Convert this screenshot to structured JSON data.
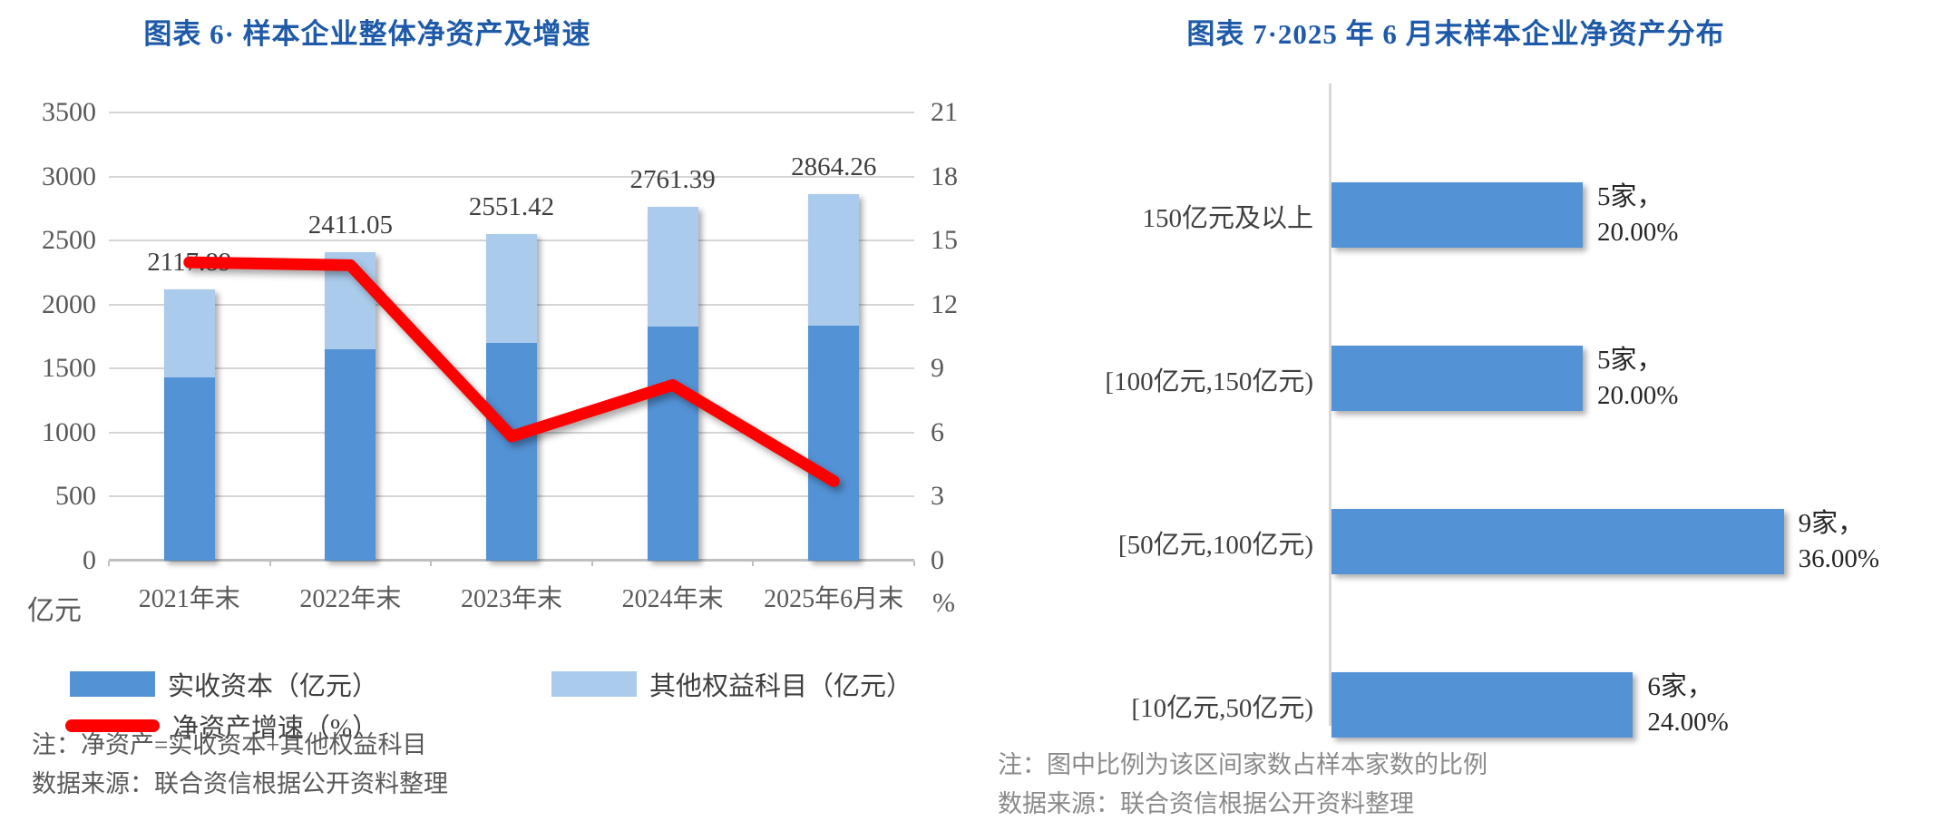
{
  "accent_colors": {
    "title_blue": "#1E5AA8",
    "bar_dark_blue": "#5392D5",
    "bar_light_blue": "#ABCBEC",
    "line_red": "#FF0000",
    "axis_text_gray": "#595959",
    "gridline_gray": "#D6D6D6"
  },
  "chart_data": [
    {
      "type": "bar",
      "subtype": "stacked-bars-with-line",
      "title": "图表 6· 样本企业整体净资产及增速",
      "categories": [
        "2021年末",
        "2022年末",
        "2023年末",
        "2024年末",
        "2025年6月末"
      ],
      "series": [
        {
          "name": "实收资本（亿元）",
          "kind": "bar",
          "color": "#5392D5",
          "values": [
            1430,
            1650,
            1700,
            1825,
            1832
          ]
        },
        {
          "name": "其他权益科目（亿元）",
          "kind": "bar",
          "color": "#ABCBEC",
          "values": [
            688,
            761,
            851,
            936,
            1032
          ]
        },
        {
          "name": "净资产增速（%）",
          "kind": "line",
          "color": "#FF0000",
          "axis": "right",
          "values": [
            13.98,
            13.84,
            5.82,
            8.23,
            3.73
          ]
        }
      ],
      "total_labels": [
        "2117.89",
        "2411.05",
        "2551.42",
        "2761.39",
        "2864.26"
      ],
      "left_axis": {
        "min": 0,
        "max": 3500,
        "step": 500,
        "unit": "亿元"
      },
      "right_axis": {
        "min": 0,
        "max": 21,
        "step": 3,
        "unit": "%"
      },
      "grid": true,
      "legend_position": "bottom-left",
      "notes": [
        "注：净资产=实收资本+其他权益科目",
        "数据来源：联合资信根据公开资料整理"
      ]
    },
    {
      "type": "bar",
      "orientation": "horizontal",
      "title": "图表 7·2025 年 6 月末样本企业净资产分布",
      "categories": [
        "150亿元及以上",
        "[100亿元,150亿元)",
        "[50亿元,100亿元)",
        "[10亿元,50亿元)"
      ],
      "values": [
        5,
        5,
        9,
        6
      ],
      "bar_color": "#5392D5",
      "value_labels": [
        [
          "5家，",
          "20.00%"
        ],
        [
          "5家，",
          "20.00%"
        ],
        [
          "9家，",
          "36.00%"
        ],
        [
          "6家，",
          "24.00%"
        ]
      ],
      "xlim": [
        0,
        9.6
      ],
      "grid": false,
      "notes": [
        "注：图中比例为该区间家数占样本家数的比例",
        "数据来源：联合资信根据公开资料整理"
      ]
    }
  ]
}
